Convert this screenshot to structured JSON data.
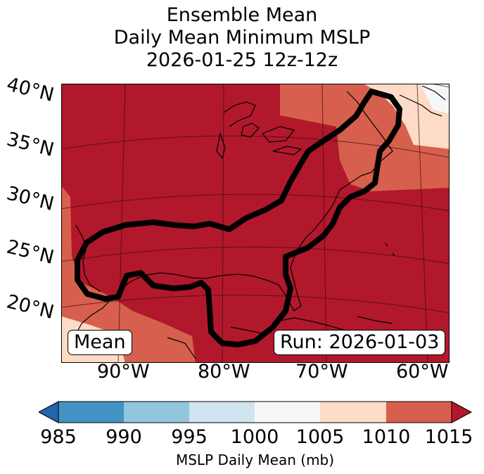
{
  "title": {
    "line1": "Ensemble Mean",
    "line2": "Daily Mean Minimum MSLP",
    "line3": "2026-01-25 12z-12z"
  },
  "map": {
    "lat_labels": [
      "40°N",
      "35°N",
      "30°N",
      "25°N",
      "20°N"
    ],
    "lon_labels": [
      "90°W",
      "80°W",
      "70°W",
      "60°W"
    ],
    "mean_box": "Mean",
    "run_box": "Run: 2026-01-03"
  },
  "colorbar": {
    "ticks": [
      "985",
      "990",
      "995",
      "1000",
      "1005",
      "1010",
      "1015"
    ],
    "label": "MSLP Daily Mean (mb)",
    "colors": [
      "#2166ac",
      "#4393c3",
      "#92c5de",
      "#d1e5f0",
      "#f7f7f7",
      "#fddbc7",
      "#d6604d",
      "#b2182b"
    ]
  }
}
